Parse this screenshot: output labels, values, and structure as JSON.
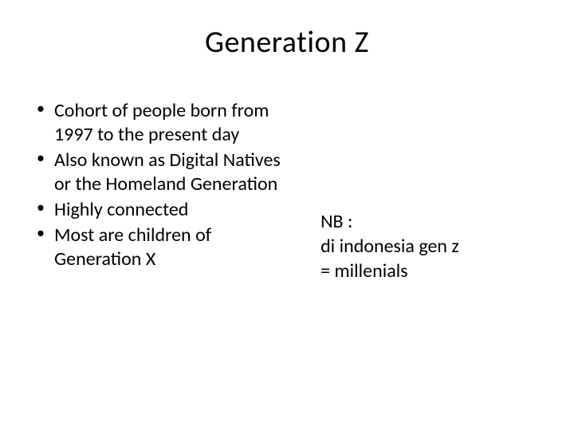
{
  "slide": {
    "title": "Generation Z",
    "bullets": [
      "Cohort of people born from 1997 to the present day",
      "Also known as Digital Natives or the Homeland Generation",
      "Highly connected",
      "Most are children of Generation X"
    ],
    "note": {
      "line1": "NB :",
      "line2": "di indonesia  gen z",
      "line3": "= millenials"
    }
  },
  "colors": {
    "background": "#ffffff",
    "text": "#000000"
  },
  "typography": {
    "title_fontsize": 38,
    "body_fontsize": 24,
    "font_family": "Calibri"
  }
}
